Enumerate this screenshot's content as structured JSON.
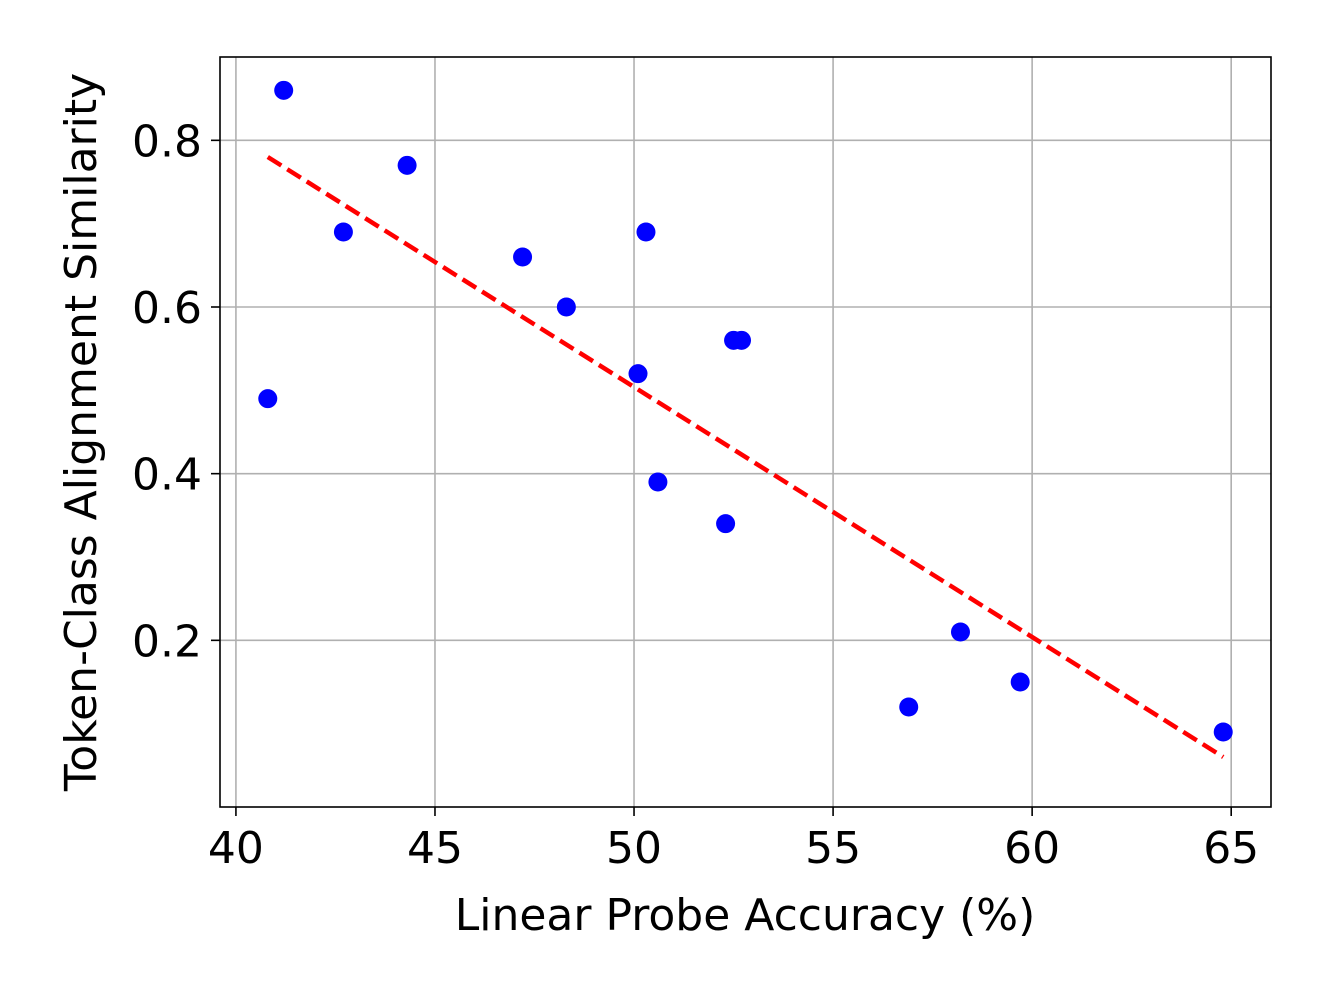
{
  "chart_data": {
    "type": "scatter",
    "title": "",
    "xlabel": "Linear Probe Accuracy (%)",
    "ylabel": "Token-Class Alignment Similarity",
    "xlim": [
      39.6,
      66.0
    ],
    "ylim": [
      0.0,
      0.9
    ],
    "xticks": [
      40,
      45,
      50,
      55,
      60,
      65
    ],
    "xtick_labels": [
      "40",
      "45",
      "50",
      "55",
      "60",
      "65"
    ],
    "yticks": [
      0.2,
      0.4,
      0.6,
      0.8
    ],
    "ytick_labels": [
      "0.2",
      "0.4",
      "0.6",
      "0.8"
    ],
    "grid": true,
    "legend": "none",
    "point_color": "#0000ff",
    "series": [
      {
        "x": [
          40.8,
          41.2,
          42.7,
          44.3,
          47.2,
          48.3,
          50.1,
          50.3,
          50.6,
          52.3,
          52.5,
          52.7,
          56.9,
          58.2,
          59.7,
          64.8
        ],
        "y": [
          0.49,
          0.86,
          0.69,
          0.77,
          0.66,
          0.6,
          0.52,
          0.69,
          0.39,
          0.34,
          0.56,
          0.56,
          0.12,
          0.21,
          0.15,
          0.09
        ]
      }
    ],
    "trend_line": {
      "style": "dashed",
      "color": "#ff0000",
      "x": [
        40.8,
        64.8
      ],
      "y": [
        0.78,
        0.06
      ]
    }
  }
}
